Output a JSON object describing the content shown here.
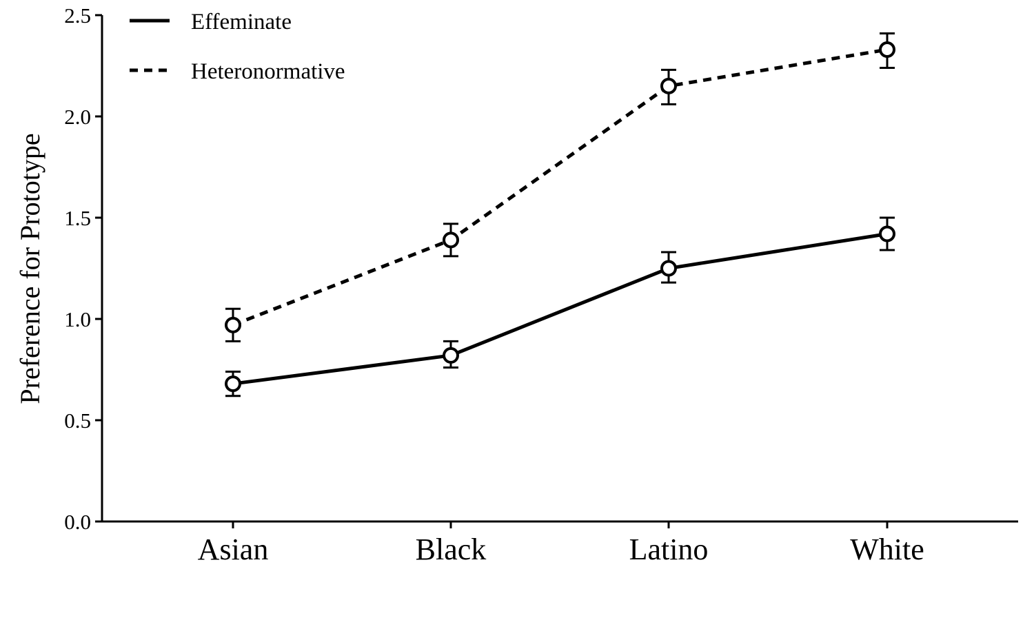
{
  "chart_data": {
    "type": "line",
    "title": "",
    "xlabel": "",
    "ylabel": "Preference for Prototype",
    "categories": [
      "Asian",
      "Black",
      "Latino",
      "White"
    ],
    "ylim": [
      0,
      2.5
    ],
    "yticks": [
      "0.0",
      "0.5",
      "1.0",
      "1.5",
      "2.0",
      "2.5"
    ],
    "grid": false,
    "legend_position": "top-left",
    "series": [
      {
        "name": "Effeminate",
        "line_style": "solid",
        "values": [
          0.68,
          0.82,
          1.25,
          1.42
        ],
        "error_low": [
          0.62,
          0.76,
          1.18,
          1.34
        ],
        "error_high": [
          0.74,
          0.89,
          1.33,
          1.5
        ]
      },
      {
        "name": "Heteronormative",
        "line_style": "dashed",
        "values": [
          0.97,
          1.39,
          2.15,
          2.33
        ],
        "error_low": [
          0.89,
          1.31,
          2.06,
          2.24
        ],
        "error_high": [
          1.05,
          1.47,
          2.23,
          2.41
        ]
      }
    ],
    "colors": {
      "line": "#000000",
      "marker_fill": "#ffffff",
      "background": "#ffffff"
    }
  }
}
